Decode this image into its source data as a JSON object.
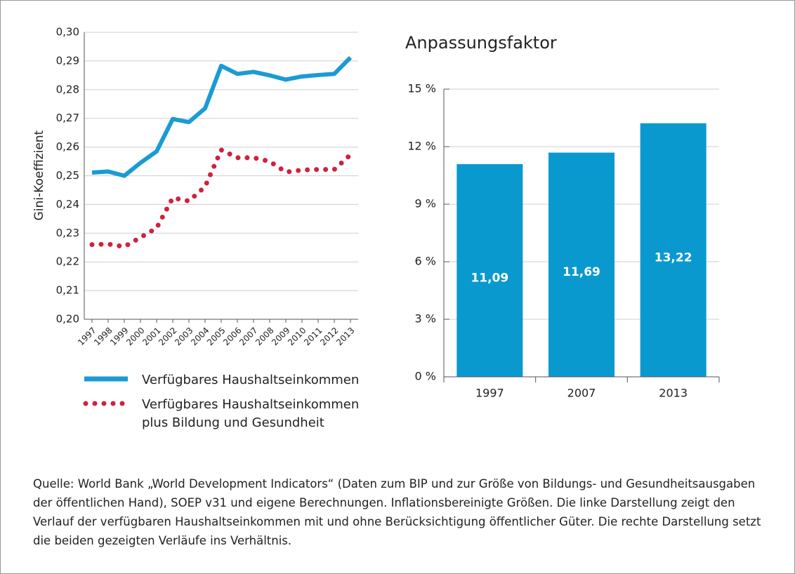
{
  "chart_data": [
    {
      "type": "line",
      "y_label": "Gini-Koeffizient",
      "categories": [
        "1997",
        "1998",
        "1999",
        "2000",
        "2001",
        "2002",
        "2003",
        "2004",
        "2005",
        "2006",
        "2007",
        "2008",
        "2009",
        "2010",
        "2011",
        "2012",
        "2013"
      ],
      "series": [
        {
          "name": "Verfügbares Haushaltseinkommen",
          "color": "#1a9bd4",
          "style": "solid",
          "values": [
            0.2511,
            0.2515,
            0.25,
            0.2545,
            0.2585,
            0.2698,
            0.2687,
            0.2735,
            0.2883,
            0.2855,
            0.2862,
            0.285,
            0.2835,
            0.2846,
            0.2851,
            0.2855,
            0.2912
          ]
        },
        {
          "name": "Verfügbares Haushaltseinkommen plus Bildung und Gesundheit",
          "color": "#d0213f",
          "style": "dotted",
          "values": [
            0.226,
            0.2262,
            0.2253,
            0.2285,
            0.2318,
            0.2423,
            0.2412,
            0.2462,
            0.259,
            0.2563,
            0.2563,
            0.255,
            0.2513,
            0.252,
            0.2522,
            0.2522,
            0.2573
          ]
        }
      ],
      "ylim": [
        0.2,
        0.3
      ],
      "yticks": [
        {
          "value": 0.2,
          "label": "0,20"
        },
        {
          "value": 0.21,
          "label": "0,21"
        },
        {
          "value": 0.22,
          "label": "0,22"
        },
        {
          "value": 0.23,
          "label": "0,23"
        },
        {
          "value": 0.24,
          "label": "0,24"
        },
        {
          "value": 0.25,
          "label": "0,25"
        },
        {
          "value": 0.26,
          "label": "0,26"
        },
        {
          "value": 0.27,
          "label": "0,27"
        },
        {
          "value": 0.28,
          "label": "0,28"
        },
        {
          "value": 0.29,
          "label": "0,29"
        },
        {
          "value": 0.3,
          "label": "0,30"
        }
      ],
      "grid": true
    },
    {
      "type": "bar",
      "title": "Anpassungsfaktor",
      "categories": [
        "1997",
        "2007",
        "2013"
      ],
      "values": [
        11.09,
        11.69,
        13.22
      ],
      "value_labels": [
        "11,09",
        "11,69",
        "13,22"
      ],
      "color": "#0a99cf",
      "ylim": [
        0,
        15
      ],
      "yticks": [
        {
          "value": 0,
          "label": "0 %"
        },
        {
          "value": 3,
          "label": "3 %"
        },
        {
          "value": 6,
          "label": "6 %"
        },
        {
          "value": 9,
          "label": "9 %"
        },
        {
          "value": 12,
          "label": "12 %"
        },
        {
          "value": 15,
          "label": "15 %"
        }
      ],
      "grid": true
    }
  ],
  "source": "Quelle: World Bank „World Development Indicators“ (Daten zum BIP und zur Größe von Bildungs- und Gesundheitsausgaben der öffentlichen Hand), SOEP v31 und eigene Berechnungen. Inflationsbereinigte Größen. Die linke Darstellung zeigt den Verlauf der verfügbaren Haushaltseinkommen mit und ohne Berücksichtigung öffentlicher Güter. Die rechte Darstellung setzt die beiden gezeigten Verläufe ins Verhältnis."
}
